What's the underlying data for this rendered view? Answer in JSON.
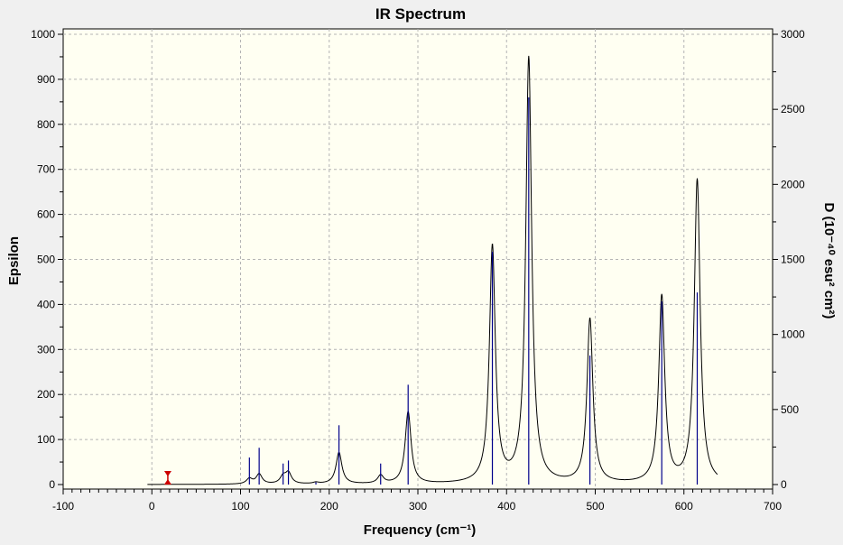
{
  "chart_data": {
    "type": "line",
    "title": "IR Spectrum",
    "xlabel": "Frequency (cm⁻¹)",
    "ylabel_left": "Epsilon",
    "ylabel_right": "D (10⁻⁴⁰ esu² cm²)",
    "xlim": [
      -100,
      700
    ],
    "ylim_left": [
      0,
      1000
    ],
    "ylim_right": [
      0,
      3000
    ],
    "x_ticks": [
      -100,
      0,
      100,
      200,
      300,
      400,
      500,
      600,
      700
    ],
    "x_tick_labels": [
      "-100",
      "0",
      "100",
      "200",
      "300",
      "400",
      "500",
      "600",
      "700"
    ],
    "y_left_ticks": [
      0,
      100,
      200,
      300,
      400,
      500,
      600,
      700,
      800,
      900,
      1000
    ],
    "y_left_tick_labels": [
      "0",
      "100",
      "200",
      "300",
      "400",
      "500",
      "600",
      "700",
      "800",
      "900",
      "1000"
    ],
    "y_right_ticks": [
      0,
      500,
      1000,
      1500,
      2000,
      2500,
      3000
    ],
    "y_right_tick_labels": [
      "0",
      "500",
      "1000",
      "1500",
      "2000",
      "2500",
      "3000"
    ],
    "grid": true,
    "series": [
      {
        "kind": "curve",
        "axis": "left",
        "color": "#000000",
        "peaks": [
          {
            "x": 110,
            "y": 12
          },
          {
            "x": 121,
            "y": 22
          },
          {
            "x": 148,
            "y": 16
          },
          {
            "x": 154,
            "y": 24
          },
          {
            "x": 185,
            "y": 3
          },
          {
            "x": 211,
            "y": 70
          },
          {
            "x": 258,
            "y": 18
          },
          {
            "x": 289,
            "y": 160
          },
          {
            "x": 384,
            "y": 525
          },
          {
            "x": 425,
            "y": 945
          },
          {
            "x": 494,
            "y": 365
          },
          {
            "x": 575,
            "y": 415
          },
          {
            "x": 615,
            "y": 675
          }
        ],
        "x_range": [
          -5,
          638
        ]
      },
      {
        "kind": "sticks",
        "axis": "right",
        "color": "#00008b",
        "x": [
          110,
          121,
          148,
          154,
          185,
          211,
          258,
          289,
          384,
          425,
          494,
          575,
          615
        ],
        "y": [
          180,
          245,
          140,
          160,
          15,
          395,
          140,
          665,
          1550,
          2580,
          860,
          1220,
          1280
        ]
      }
    ],
    "marker": {
      "x": 18,
      "y": 30,
      "color": "#cc0000"
    },
    "colors": {
      "plot_background": "#fffff2",
      "outer_background": "#f0f0f0",
      "grid": "#b4b4b4",
      "curve": "#000000",
      "sticks": "#00008b"
    }
  }
}
